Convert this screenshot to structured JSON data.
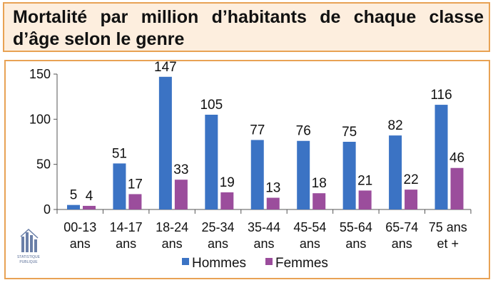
{
  "title": "Mortalité par million d’habitants de chaque classe d’âge selon le genre",
  "chart_data": {
    "type": "bar",
    "categories": [
      [
        "00-13",
        "ans"
      ],
      [
        "14-17",
        "ans"
      ],
      [
        "18-24",
        "ans"
      ],
      [
        "25-34",
        "ans"
      ],
      [
        "35-44",
        "ans"
      ],
      [
        "45-54",
        "ans"
      ],
      [
        "55-64",
        "ans"
      ],
      [
        "65-74",
        "ans"
      ],
      [
        "75 ans",
        "et +"
      ]
    ],
    "series": [
      {
        "name": "Hommes",
        "color": "#3b73c4",
        "values": [
          5,
          51,
          147,
          105,
          77,
          76,
          75,
          82,
          116
        ]
      },
      {
        "name": "Femmes",
        "color": "#9b4d9c",
        "values": [
          4,
          17,
          33,
          19,
          13,
          18,
          21,
          22,
          46
        ]
      }
    ],
    "ylim": [
      0,
      150
    ],
    "yticks": [
      0,
      50,
      100,
      150
    ],
    "legend": "bottom",
    "grid": false
  },
  "logo_text": [
    "STATISTIQUE",
    "PUBLIQUE"
  ]
}
